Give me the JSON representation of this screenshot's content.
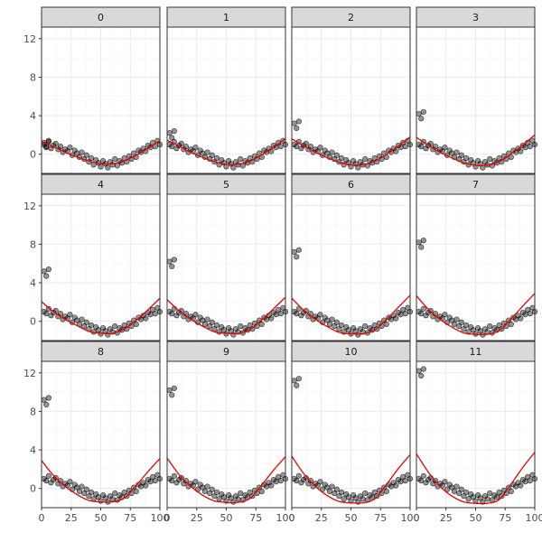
{
  "chart_data": {
    "type": "scatter",
    "layout": "facet-grid",
    "facets": [
      "0",
      "1",
      "2",
      "3",
      "4",
      "5",
      "6",
      "7",
      "8",
      "9",
      "10",
      "11"
    ],
    "xlim": [
      0,
      100
    ],
    "ylim": [
      -2,
      13.2
    ],
    "x_ticks": [
      0,
      25,
      50,
      75,
      100
    ],
    "x_tick_labels": [
      "0",
      "25",
      "50",
      "75",
      "100"
    ],
    "y_ticks": [
      0,
      4,
      8,
      12
    ],
    "y_tick_labels": [
      "0",
      "4",
      "8",
      "12"
    ],
    "grid": true,
    "series_colors": {
      "points": "#000000",
      "fit": "#ee0000"
    },
    "x": [
      2,
      4,
      6,
      8,
      10,
      12,
      14,
      16,
      18,
      20,
      22,
      24,
      26,
      28,
      30,
      32,
      34,
      36,
      38,
      40,
      42,
      44,
      46,
      48,
      50,
      52,
      54,
      56,
      58,
      60,
      62,
      64,
      66,
      68,
      70,
      72,
      74,
      76,
      78,
      80,
      82,
      84,
      86,
      88,
      90,
      92,
      94,
      96,
      98,
      100
    ],
    "y_base": [
      1.0,
      0.8,
      1.3,
      0.6,
      0.9,
      1.1,
      0.5,
      0.8,
      0.2,
      0.5,
      0.3,
      0.7,
      -0.1,
      0.4,
      0.1,
      -0.3,
      0.2,
      -0.5,
      -0.1,
      -0.8,
      -0.4,
      -1.1,
      -0.6,
      -0.9,
      -1.3,
      -0.7,
      -1.0,
      -1.4,
      -0.8,
      -1.1,
      -0.5,
      -1.2,
      -0.7,
      -0.9,
      -0.4,
      -0.8,
      -0.2,
      -0.5,
      0.1,
      -0.3,
      0.4,
      0.2,
      0.6,
      0.3,
      0.9,
      0.7,
      1.2,
      0.8,
      1.4,
      1.0
    ],
    "outlier_x": [
      2,
      4,
      6
    ],
    "outlier_offsets": [
      0.2,
      -0.3,
      0.4
    ],
    "outlier_y_by_facet": [
      1.0,
      2.0,
      3.0,
      4.0,
      5.0,
      6.0,
      7.0,
      8.0,
      9.0,
      10.0,
      11.0,
      12.0
    ],
    "fit_curves": [
      {
        "facet": "0",
        "x": [
          0,
          10,
          20,
          30,
          40,
          50,
          60,
          70,
          80,
          90,
          100
        ],
        "y": [
          1.3,
          0.8,
          0.2,
          -0.3,
          -0.7,
          -1.0,
          -1.0,
          -0.7,
          -0.1,
          0.6,
          1.4
        ]
      },
      {
        "facet": "1",
        "x": [
          0,
          10,
          20,
          30,
          40,
          50,
          60,
          70,
          80,
          90,
          100
        ],
        "y": [
          1.45,
          0.84,
          0.2,
          -0.33,
          -0.77,
          -1.05,
          -1.05,
          -0.72,
          -0.06,
          0.72,
          1.6
        ]
      },
      {
        "facet": "2",
        "x": [
          0,
          10,
          20,
          30,
          40,
          50,
          60,
          70,
          80,
          90,
          100
        ],
        "y": [
          1.6,
          0.88,
          0.2,
          -0.36,
          -0.84,
          -1.1,
          -1.1,
          -0.74,
          -0.02,
          0.84,
          1.8
        ]
      },
      {
        "facet": "3",
        "x": [
          0,
          10,
          20,
          30,
          40,
          50,
          60,
          70,
          80,
          90,
          100
        ],
        "y": [
          1.75,
          0.92,
          0.2,
          -0.39,
          -0.91,
          -1.15,
          -1.15,
          -0.76,
          0.02,
          0.96,
          2.0
        ]
      },
      {
        "facet": "4",
        "x": [
          0,
          10,
          20,
          30,
          40,
          50,
          60,
          70,
          80,
          90,
          100
        ],
        "y": [
          2.05,
          1.0,
          0.2,
          -0.45,
          -1.05,
          -1.25,
          -1.25,
          -0.8,
          0.1,
          1.2,
          2.4
        ]
      },
      {
        "facet": "5",
        "x": [
          0,
          10,
          20,
          30,
          40,
          50,
          60,
          70,
          80,
          90,
          100
        ],
        "y": [
          2.25,
          1.1,
          0.2,
          -0.5,
          -1.1,
          -1.25,
          -1.25,
          -0.85,
          0.15,
          1.3,
          2.5
        ]
      },
      {
        "facet": "6",
        "x": [
          0,
          10,
          20,
          30,
          40,
          50,
          60,
          70,
          80,
          90,
          100
        ],
        "y": [
          2.4,
          1.15,
          0.2,
          -0.55,
          -1.15,
          -1.3,
          -1.3,
          -0.9,
          0.2,
          1.45,
          2.7
        ]
      },
      {
        "facet": "7",
        "x": [
          0,
          10,
          20,
          30,
          40,
          50,
          60,
          70,
          80,
          90,
          100
        ],
        "y": [
          2.65,
          1.25,
          0.2,
          -0.6,
          -1.2,
          -1.35,
          -1.35,
          -0.95,
          0.25,
          1.6,
          2.9
        ]
      },
      {
        "facet": "8",
        "x": [
          0,
          10,
          20,
          30,
          40,
          50,
          60,
          70,
          80,
          90,
          100
        ],
        "y": [
          2.9,
          1.35,
          0.2,
          -0.65,
          -1.25,
          -1.4,
          -1.4,
          -1.0,
          0.3,
          1.75,
          3.1
        ]
      },
      {
        "facet": "9",
        "x": [
          0,
          10,
          20,
          30,
          40,
          50,
          60,
          70,
          80,
          90,
          100
        ],
        "y": [
          3.15,
          1.45,
          0.2,
          -0.7,
          -1.3,
          -1.45,
          -1.45,
          -1.05,
          0.35,
          1.9,
          3.3
        ]
      },
      {
        "facet": "10",
        "x": [
          0,
          10,
          20,
          30,
          40,
          50,
          60,
          70,
          80,
          90,
          100
        ],
        "y": [
          3.35,
          1.55,
          0.2,
          -0.75,
          -1.35,
          -1.5,
          -1.5,
          -1.1,
          0.4,
          2.05,
          3.5
        ]
      },
      {
        "facet": "11",
        "x": [
          0,
          10,
          20,
          30,
          40,
          50,
          60,
          70,
          80,
          90,
          100
        ],
        "y": [
          3.6,
          1.7,
          0.2,
          -0.8,
          -1.4,
          -1.55,
          -1.55,
          -1.15,
          0.45,
          2.2,
          3.75
        ]
      }
    ]
  }
}
